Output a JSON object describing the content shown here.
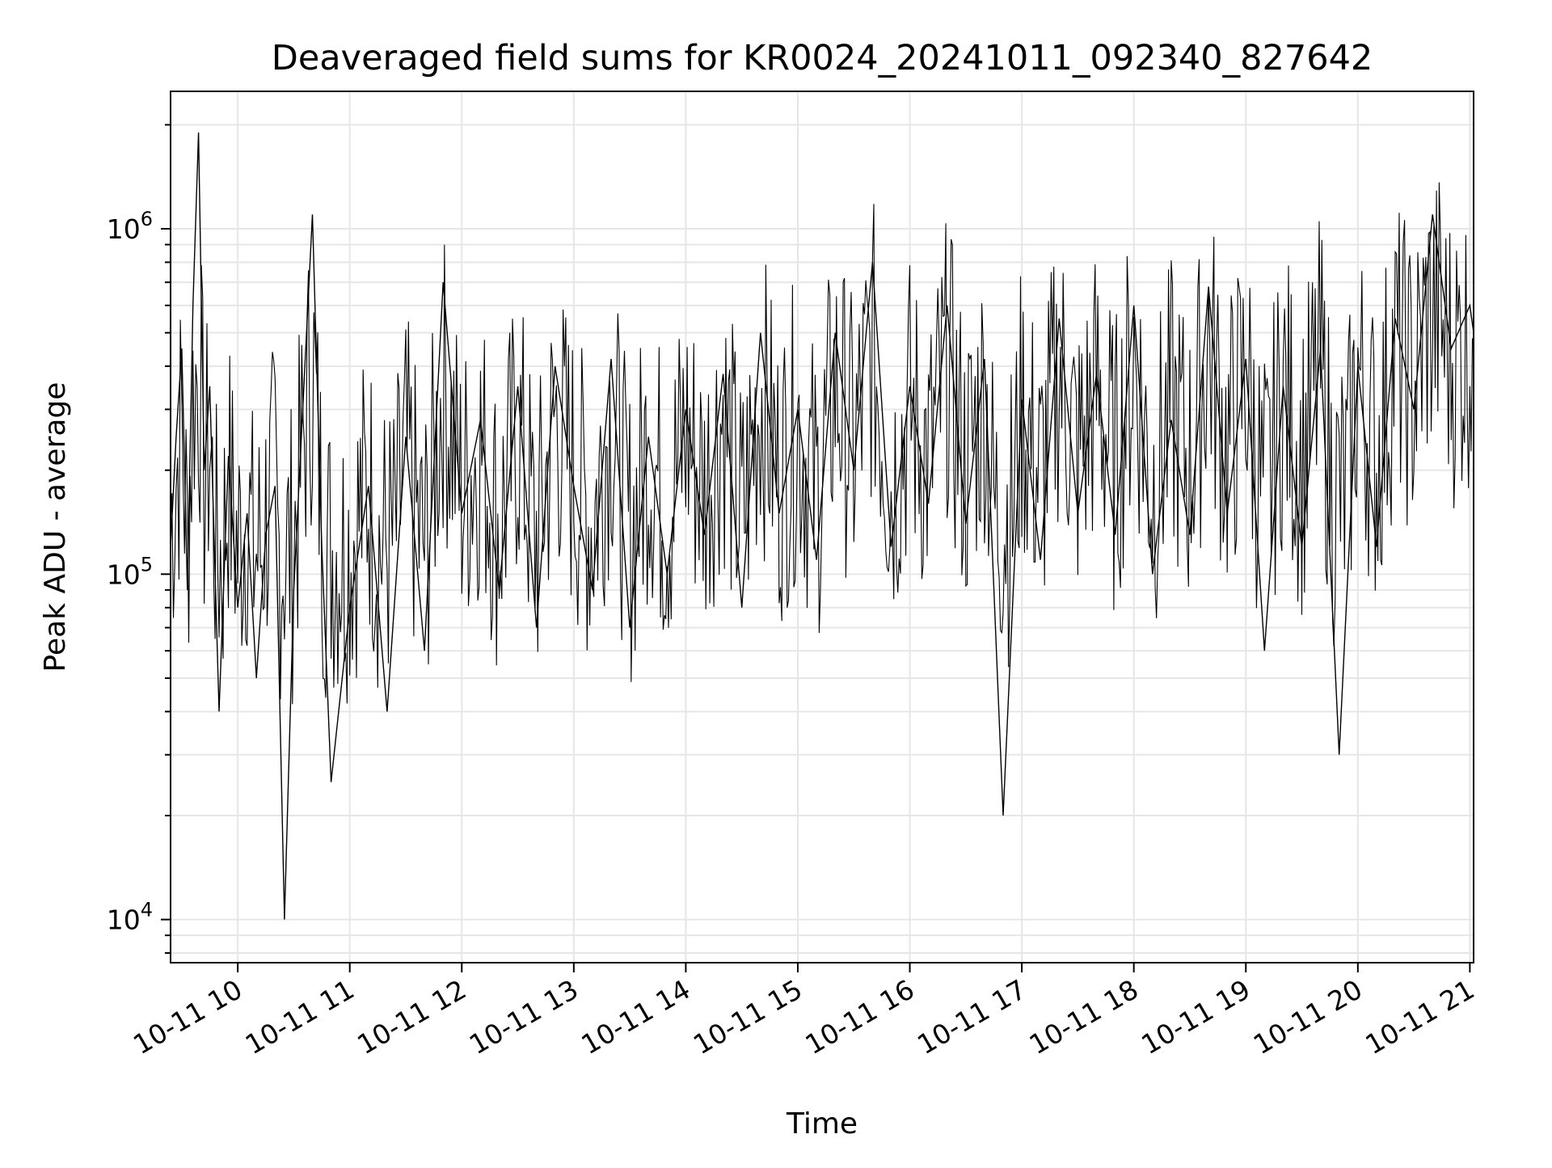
{
  "chart_data": {
    "type": "line",
    "title": "Deaveraged field sums for KR0024_20241011_092340_827642",
    "xlabel": "Time",
    "ylabel": "Peak ADU - average",
    "y_scale": "log",
    "ylim": [
      7500,
      2500000
    ],
    "xlim": [
      "2024-10-11 09:24",
      "2024-10-11 21:02"
    ],
    "grid": true,
    "line_color": "#000000",
    "grid_color": "#e6e6e6",
    "x_ticks": [
      {
        "value": "2024-10-11 10:00",
        "label": "10-11 10"
      },
      {
        "value": "2024-10-11 11:00",
        "label": "10-11 11"
      },
      {
        "value": "2024-10-11 12:00",
        "label": "10-11 12"
      },
      {
        "value": "2024-10-11 13:00",
        "label": "10-11 13"
      },
      {
        "value": "2024-10-11 14:00",
        "label": "10-11 14"
      },
      {
        "value": "2024-10-11 15:00",
        "label": "10-11 15"
      },
      {
        "value": "2024-10-11 16:00",
        "label": "10-11 16"
      },
      {
        "value": "2024-10-11 17:00",
        "label": "10-11 17"
      },
      {
        "value": "2024-10-11 18:00",
        "label": "10-11 18"
      },
      {
        "value": "2024-10-11 19:00",
        "label": "10-11 19"
      },
      {
        "value": "2024-10-11 20:00",
        "label": "10-11 20"
      },
      {
        "value": "2024-10-11 21:00",
        "label": "10-11 21"
      }
    ],
    "y_ticks": [
      {
        "value": 10000,
        "base": "10",
        "exp": "4"
      },
      {
        "value": 100000,
        "base": "10",
        "exp": "5"
      },
      {
        "value": 1000000,
        "base": "10",
        "exp": "6"
      }
    ],
    "series": [
      {
        "x": [
          "09:24",
          "09:27",
          "09:30",
          "09:33",
          "09:36",
          "09:39",
          "09:42",
          "09:45",
          "09:50",
          "09:55",
          "10:00",
          "10:05",
          "10:10",
          "10:15",
          "10:20",
          "10:25",
          "10:30",
          "10:40",
          "10:45",
          "10:50",
          "11:00",
          "11:10",
          "11:20",
          "11:30",
          "11:40",
          "11:50",
          "12:00",
          "12:10",
          "12:20",
          "12:30",
          "12:40",
          "12:50",
          "13:00",
          "13:10",
          "13:20",
          "13:30",
          "13:40",
          "13:50",
          "14:00",
          "14:10",
          "14:20",
          "14:30",
          "14:40",
          "14:50",
          "15:00",
          "15:10",
          "15:20",
          "15:30",
          "15:40",
          "15:50",
          "16:00",
          "16:10",
          "16:20",
          "16:30",
          "16:40",
          "16:50",
          "17:00",
          "17:10",
          "17:20",
          "17:30",
          "17:40",
          "17:50",
          "18:00",
          "18:10",
          "18:20",
          "18:30",
          "18:40",
          "18:50",
          "19:00",
          "19:10",
          "19:20",
          "19:30",
          "19:40",
          "19:50",
          "20:00",
          "20:10",
          "20:20",
          "20:30",
          "20:40",
          "20:50",
          "21:00",
          "21:02"
        ],
        "y": [
          120000,
          250000,
          450000,
          90000,
          600000,
          1900000,
          200000,
          350000,
          40000,
          220000,
          80000,
          150000,
          50000,
          130000,
          180000,
          10000,
          90000,
          1100000,
          120000,
          25000,
          80000,
          180000,
          40000,
          250000,
          60000,
          700000,
          150000,
          280000,
          90000,
          350000,
          70000,
          400000,
          180000,
          90000,
          420000,
          70000,
          250000,
          100000,
          300000,
          130000,
          380000,
          80000,
          500000,
          150000,
          300000,
          110000,
          500000,
          200000,
          800000,
          120000,
          350000,
          160000,
          600000,
          140000,
          420000,
          20000,
          320000,
          110000,
          550000,
          150000,
          380000,
          130000,
          600000,
          100000,
          280000,
          130000,
          680000,
          150000,
          420000,
          60000,
          350000,
          120000,
          450000,
          30000,
          400000,
          120000,
          550000,
          300000,
          1100000,
          450000,
          600000,
          500000
        ]
      }
    ]
  }
}
